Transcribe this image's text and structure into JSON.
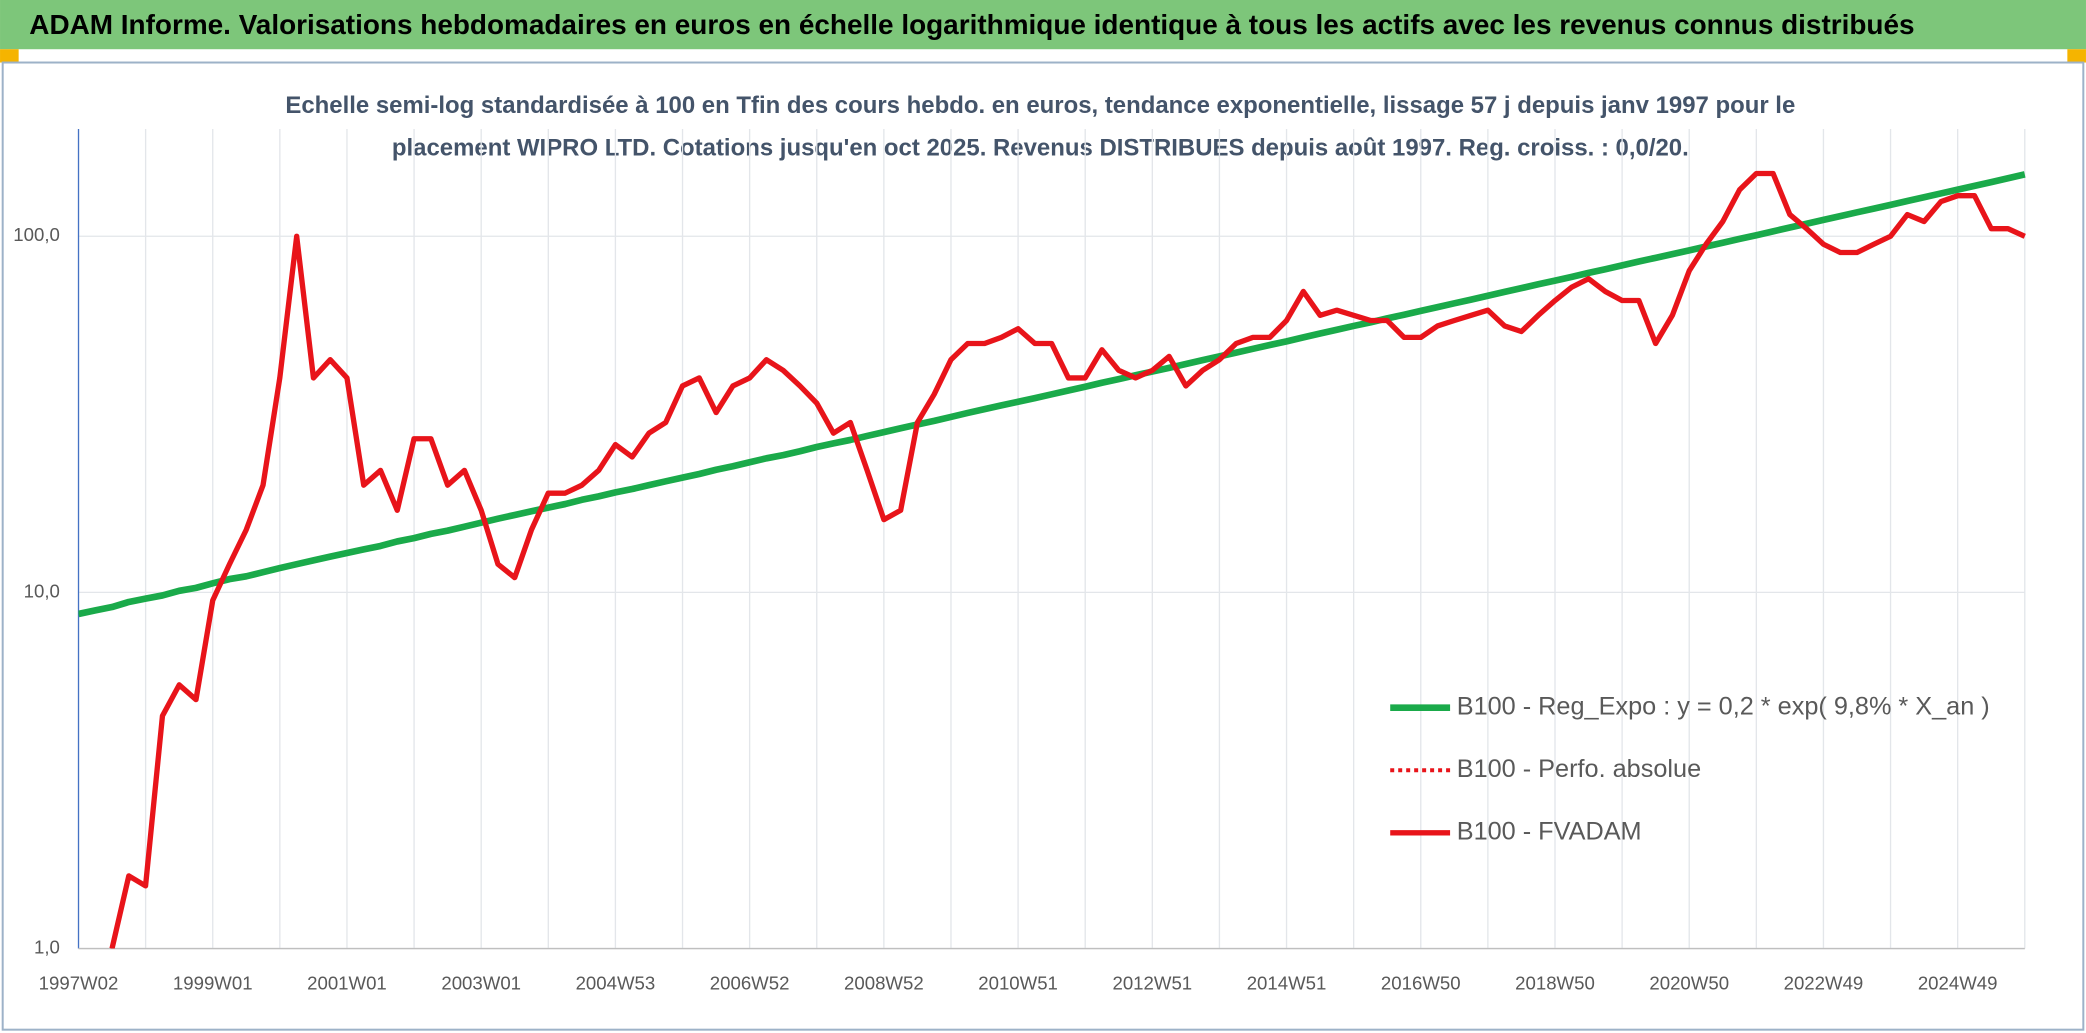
{
  "chart_data": {
    "type": "line",
    "header": "ADAM Informe. Valorisations hebdomadaires en euros en échelle logarithmique identique à tous les actifs avec les revenus connus distribués",
    "title": [
      "Echelle semi-log standardisée à 100 en Tfin des cours hebdo. en euros, tendance exponentielle, lissage 57 j depuis janv 1997 pour le",
      "placement WIPRO LTD. Cotations jusqu'en oct 2025. Revenus DISTRIBUES depuis août 1997. Reg. croiss. : 0,0/20."
    ],
    "categories": [
      "1997W02",
      null,
      null,
      null,
      null,
      null,
      null,
      null,
      "1999W01",
      null,
      null,
      null,
      null,
      null,
      null,
      null,
      "2001W01",
      null,
      null,
      null,
      null,
      null,
      null,
      null,
      "2003W01",
      null,
      null,
      null,
      null,
      null,
      null,
      null,
      "2004W53",
      null,
      null,
      null,
      null,
      null,
      null,
      null,
      "2006W52",
      null,
      null,
      null,
      null,
      null,
      null,
      null,
      "2008W52",
      null,
      null,
      null,
      null,
      null,
      null,
      null,
      "2010W51",
      null,
      null,
      null,
      null,
      null,
      null,
      null,
      "2012W51",
      null,
      null,
      null,
      null,
      null,
      null,
      null,
      "2014W51",
      null,
      null,
      null,
      null,
      null,
      null,
      null,
      "2016W50",
      null,
      null,
      null,
      null,
      null,
      null,
      null,
      "2018W50",
      null,
      null,
      null,
      null,
      null,
      null,
      null,
      "2020W50",
      null,
      null,
      null,
      null,
      null,
      null,
      null,
      "2022W49",
      null,
      null,
      null,
      null,
      null,
      null,
      null,
      "2024W49",
      null,
      null,
      null,
      null
    ],
    "log_scale": true,
    "grid": true,
    "legend": "lower right",
    "ylim": [
      1,
      200
    ],
    "yticks": [
      {
        "value": 1,
        "label": "1,0"
      },
      {
        "value": 10,
        "label": "10,0"
      },
      {
        "value": 100,
        "label": "100,0"
      }
    ],
    "series": [
      {
        "name": "B100 - Reg_Expo : y = 0,2 * exp( 9,8% *  X_an )",
        "color": "#1aaa4a",
        "style": "solid",
        "width": 5,
        "values": [
          8.7,
          8.9,
          9.1,
          9.4,
          9.6,
          9.8,
          10.1,
          10.3,
          10.6,
          10.9,
          11.1,
          11.4,
          11.7,
          12.0,
          12.3,
          12.6,
          12.9,
          13.2,
          13.5,
          13.9,
          14.2,
          14.6,
          14.9,
          15.3,
          15.7,
          16.1,
          16.5,
          16.9,
          17.3,
          17.7,
          18.2,
          18.6,
          19.1,
          19.5,
          20.0,
          20.5,
          21.0,
          21.5,
          22.1,
          22.6,
          23.2,
          23.8,
          24.3,
          24.9,
          25.6,
          26.2,
          26.8,
          27.5,
          28.2,
          28.9,
          29.6,
          30.3,
          31.1,
          31.9,
          32.7,
          33.5,
          34.3,
          35.1,
          36.0,
          36.9,
          37.8,
          38.8,
          39.7,
          40.7,
          41.7,
          42.7,
          43.8,
          44.9,
          46.0,
          47.1,
          48.3,
          49.5,
          50.7,
          52.0,
          53.3,
          54.6,
          56.0,
          57.3,
          58.8,
          60.2,
          61.7,
          63.2,
          64.8,
          66.4,
          68.1,
          69.8,
          71.5,
          73.3,
          75.1,
          76.9,
          78.9,
          80.8,
          82.8,
          84.9,
          87.0,
          89.1,
          91.3,
          93.6,
          95.9,
          98.3,
          100.7,
          103.2,
          105.8,
          108.4,
          111.1,
          113.9,
          116.7,
          119.6,
          122.5,
          125.6,
          128.7,
          131.9,
          135.2,
          138.5,
          141.9,
          145.5,
          149.1
        ]
      },
      {
        "name": "B100 - Perfo. absolue",
        "color": "#e8141a",
        "style": "dotted",
        "width": 3,
        "values": [
          null,
          null,
          1.0,
          1.6,
          1.5,
          4.5,
          5.5,
          5.0,
          9.5,
          12,
          15,
          20,
          40,
          100,
          40,
          45,
          40,
          20,
          22,
          17,
          27,
          27,
          20,
          22,
          17,
          12,
          11,
          15,
          19,
          19,
          20,
          22,
          26,
          24,
          28,
          30,
          38,
          40,
          32,
          38,
          40,
          45,
          42,
          38,
          34,
          28,
          30,
          22,
          16,
          17,
          30,
          36,
          45,
          50,
          50,
          52,
          55,
          50,
          50,
          40,
          40,
          48,
          42,
          40,
          42,
          46,
          38,
          42,
          45,
          50,
          52,
          52,
          58,
          70,
          60,
          62,
          60,
          58,
          58,
          52,
          52,
          56,
          58,
          60,
          62,
          56,
          54,
          60,
          66,
          72,
          76,
          70,
          66,
          66,
          50,
          60,
          80,
          95,
          110,
          135,
          150,
          150,
          115,
          105,
          95,
          90,
          90,
          95,
          100,
          115,
          110,
          125,
          130,
          130,
          105,
          105,
          100
        ]
      },
      {
        "name": "B100 - FVADAM",
        "color": "#e8141a",
        "style": "solid",
        "width": 4,
        "values": [
          null,
          null,
          1.0,
          1.6,
          1.5,
          4.5,
          5.5,
          5.0,
          9.5,
          12,
          15,
          20,
          40,
          100,
          40,
          45,
          40,
          20,
          22,
          17,
          27,
          27,
          20,
          22,
          17,
          12,
          11,
          15,
          19,
          19,
          20,
          22,
          26,
          24,
          28,
          30,
          38,
          40,
          32,
          38,
          40,
          45,
          42,
          38,
          34,
          28,
          30,
          22,
          16,
          17,
          30,
          36,
          45,
          50,
          50,
          52,
          55,
          50,
          50,
          40,
          40,
          48,
          42,
          40,
          42,
          46,
          38,
          42,
          45,
          50,
          52,
          52,
          58,
          70,
          60,
          62,
          60,
          58,
          58,
          52,
          52,
          56,
          58,
          60,
          62,
          56,
          54,
          60,
          66,
          72,
          76,
          70,
          66,
          66,
          50,
          60,
          80,
          95,
          110,
          135,
          150,
          150,
          115,
          105,
          95,
          90,
          90,
          95,
          100,
          115,
          110,
          125,
          130,
          130,
          105,
          105,
          100
        ]
      }
    ]
  }
}
